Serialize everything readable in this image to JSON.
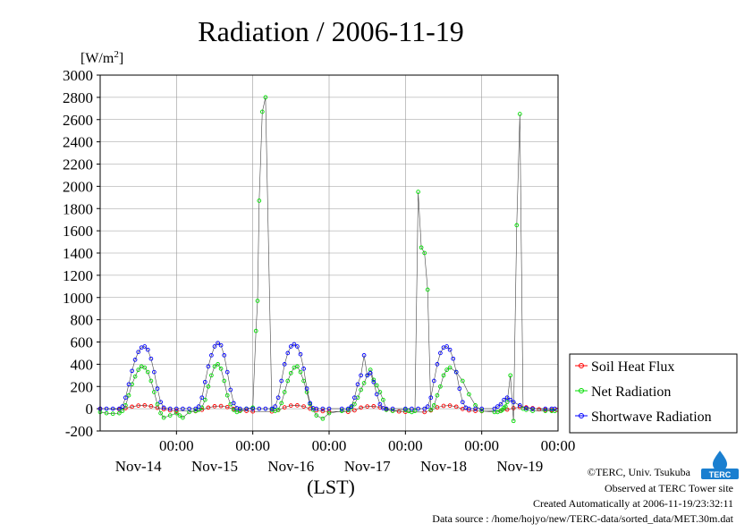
{
  "chart_data": {
    "type": "line",
    "title": "Radiation / 2006-11-19",
    "ylabel": "[W/m2]",
    "ylabel_base": "[W/m",
    "ylabel_sup": "2",
    "ylabel_close": "]",
    "xlabel": "(LST)",
    "ylim": [
      -200,
      3000
    ],
    "yticks": [
      "3000",
      "2800",
      "2600",
      "2400",
      "2200",
      "2000",
      "1800",
      "1600",
      "1400",
      "1200",
      "1000",
      "800",
      "600",
      "400",
      "200",
      "0",
      "-200"
    ],
    "xlim_hours": [
      0,
      144
    ],
    "xtick_labels": [
      "00:00",
      "00:00",
      "00:00",
      "00:00",
      "00:00",
      "00:00"
    ],
    "date_labels": [
      "Nov-14",
      "Nov-15",
      "Nov-16",
      "Nov-17",
      "Nov-18",
      "Nov-19"
    ],
    "grid": true,
    "legend_position": "right",
    "series": [
      {
        "name": "Soil Heat Flux",
        "color": "#ff0000",
        "x": [
          0,
          6,
          8,
          10,
          12,
          14,
          16,
          18,
          20,
          22,
          24,
          30,
          32,
          34,
          36,
          38,
          40,
          42,
          44,
          46,
          48,
          54,
          56,
          58,
          60,
          62,
          64,
          66,
          68,
          70,
          72,
          78,
          80,
          82,
          84,
          86,
          88,
          90,
          92,
          94,
          96,
          102,
          104,
          106,
          108,
          110,
          112,
          114,
          116,
          118,
          120,
          126,
          128,
          130,
          132,
          134,
          136,
          138,
          140,
          142,
          143.5
        ],
        "y": [
          0,
          -5,
          5,
          18,
          28,
          30,
          22,
          8,
          -5,
          -15,
          -20,
          -22,
          -10,
          10,
          22,
          24,
          15,
          -2,
          -15,
          -20,
          -25,
          -25,
          -12,
          12,
          28,
          30,
          20,
          0,
          -15,
          -22,
          -25,
          -28,
          -15,
          10,
          20,
          22,
          12,
          -5,
          -18,
          -25,
          -28,
          -30,
          -15,
          12,
          25,
          28,
          18,
          -2,
          -15,
          -20,
          -22,
          -18,
          -8,
          5,
          15,
          12,
          5,
          -5,
          -10,
          -12,
          -10
        ]
      },
      {
        "name": "Net Radiation",
        "color": "#00dd00",
        "x": [
          0,
          2,
          4,
          6,
          7,
          8,
          9,
          10,
          11,
          12,
          13,
          14,
          15,
          16,
          17,
          18,
          19,
          20,
          22,
          24,
          25,
          26,
          28,
          30,
          31,
          32,
          33,
          34,
          35,
          36,
          37,
          38,
          39,
          40,
          41,
          42,
          43,
          44,
          46,
          48,
          49,
          49.5,
          50,
          51,
          52,
          54,
          55,
          56,
          57,
          58,
          59,
          60,
          61,
          62,
          63,
          64,
          65,
          66,
          67,
          68,
          70,
          72,
          76,
          78,
          79,
          80,
          81,
          82,
          83,
          84,
          85,
          86,
          87,
          88,
          89,
          90,
          92,
          96,
          97,
          98,
          99,
          100,
          101,
          102,
          103,
          104,
          105,
          106,
          107,
          108,
          109,
          110,
          112,
          114,
          116,
          118,
          120,
          124,
          125,
          126,
          126.5,
          127,
          127.5,
          128,
          129,
          130,
          131,
          132,
          133,
          134,
          136,
          140,
          142,
          143
        ],
        "y": [
          -30,
          -40,
          -45,
          -40,
          -20,
          30,
          120,
          220,
          290,
          350,
          380,
          370,
          330,
          250,
          150,
          40,
          -40,
          -80,
          -60,
          -40,
          -60,
          -80,
          -30,
          -20,
          -10,
          10,
          80,
          200,
          300,
          380,
          400,
          360,
          250,
          120,
          40,
          -10,
          -30,
          -20,
          0,
          10,
          700,
          970,
          1870,
          2670,
          2800,
          -10,
          -20,
          -10,
          50,
          150,
          250,
          320,
          370,
          380,
          330,
          250,
          150,
          40,
          -10,
          -60,
          -90,
          -40,
          -20,
          -10,
          10,
          40,
          100,
          170,
          230,
          300,
          350,
          260,
          210,
          150,
          80,
          -10,
          -20,
          -10,
          -20,
          -30,
          -20,
          1950,
          1450,
          1400,
          1070,
          -10,
          30,
          120,
          200,
          300,
          350,
          370,
          330,
          250,
          130,
          30,
          -20,
          -30,
          -30,
          -20,
          -10,
          10,
          20,
          60,
          300,
          -110,
          1650,
          2650,
          0,
          -10,
          -20,
          -20,
          -20,
          -20
        ]
      },
      {
        "name": "Shortwave Radiation",
        "color": "#0000ff",
        "x": [
          0,
          2,
          4,
          6,
          7,
          8,
          9,
          10,
          11,
          12,
          13,
          14,
          15,
          16,
          17,
          18,
          19,
          20,
          22,
          24,
          26,
          28,
          30,
          31,
          32,
          33,
          34,
          35,
          36,
          37,
          38,
          39,
          40,
          41,
          42,
          43,
          44,
          46,
          48,
          50,
          52,
          54,
          55,
          56,
          57,
          58,
          59,
          60,
          61,
          62,
          63,
          64,
          65,
          66,
          67,
          68,
          70,
          72,
          76,
          78,
          79,
          80,
          81,
          82,
          83,
          84,
          85,
          86,
          87,
          88,
          89,
          90,
          92,
          96,
          98,
          100,
          102,
          103,
          104,
          105,
          106,
          107,
          108,
          109,
          110,
          111,
          112,
          113,
          114,
          115,
          116,
          118,
          120,
          124,
          125,
          126,
          127,
          128,
          129,
          130,
          132,
          134,
          136,
          140,
          142,
          143
        ],
        "y": [
          0,
          0,
          0,
          0,
          20,
          100,
          220,
          340,
          440,
          510,
          550,
          560,
          530,
          450,
          330,
          180,
          60,
          10,
          0,
          0,
          0,
          0,
          0,
          20,
          100,
          240,
          380,
          480,
          560,
          590,
          570,
          480,
          330,
          170,
          50,
          5,
          0,
          0,
          0,
          0,
          0,
          0,
          20,
          100,
          250,
          400,
          500,
          560,
          580,
          560,
          490,
          360,
          180,
          50,
          5,
          0,
          0,
          0,
          0,
          0,
          20,
          100,
          220,
          300,
          480,
          300,
          320,
          240,
          130,
          40,
          5,
          0,
          0,
          0,
          0,
          0,
          0,
          20,
          100,
          250,
          400,
          500,
          550,
          560,
          530,
          450,
          330,
          180,
          60,
          10,
          0,
          0,
          0,
          0,
          20,
          40,
          80,
          100,
          80,
          60,
          30,
          5,
          0,
          0,
          0,
          0
        ]
      }
    ]
  },
  "credits": {
    "copyright": "©TERC, Univ. Tsukuba",
    "observed": "Observed at TERC Tower site",
    "created": "Created Automatically at 2006-11-19/23:32:11",
    "source": "Data source : /home/hojyo/new/TERC-data/sorted_data/MET.30m.dat"
  },
  "logo": {
    "text": "TERC",
    "color": "#1a7fd0"
  }
}
